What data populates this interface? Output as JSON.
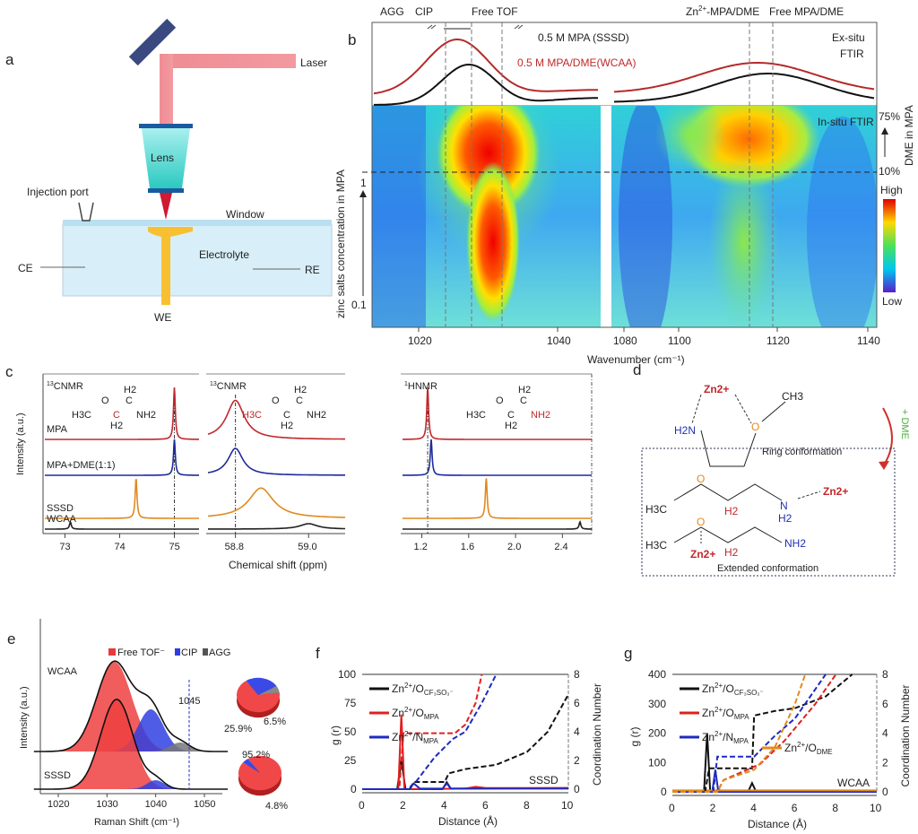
{
  "panels": {
    "a": "a",
    "b": "b",
    "c": "c",
    "d": "d",
    "e": "e",
    "f": "f",
    "g": "g"
  },
  "a": {
    "laser": "Laser",
    "lens": "Lens",
    "injection_port": "Injection port",
    "window": "Window",
    "electrolyte": "Electrolyte",
    "ce": "CE",
    "re": "RE",
    "we": "WE"
  },
  "b": {
    "top_labels": [
      "AGG",
      "CIP",
      "Free TOF",
      "Zn2+-MPA/DME",
      "Free MPA/DME"
    ],
    "zn_label": "Zn",
    "zn_sup": "2+",
    "zn_rest": "-MPA/DME",
    "sssd_label": "0.5 M MPA (SSSD)",
    "wcaa_label": "0.5 M MPA/DME(WCAA)",
    "exsitu": "Ex-situ",
    "ftir": "FTIR",
    "insitu": "In-situ FTIR",
    "x_ticks": [
      "1020",
      "1040",
      "1080",
      "1100",
      "1120",
      "1140"
    ],
    "xlabel": "Wavenumber (cm⁻¹)",
    "ylabel": "zinc salts concentration in MPA",
    "y_top": "1",
    "y_bottom": "0.1",
    "right_top": "75%",
    "right_mid": "10%",
    "right_label": "DME in MPA",
    "colorbar_high": "High",
    "colorbar_low": "Low",
    "colors": {
      "sssd": "#111111",
      "wcaa": "#b52a2a"
    }
  },
  "c": {
    "panel_titles": [
      "13CNMR",
      "13CNMR",
      "1HNMR"
    ],
    "title_sup": [
      "13",
      "13",
      "1"
    ],
    "title_rest": [
      "CNMR",
      "CNMR",
      "HNMR"
    ],
    "samples": [
      "MPA",
      "MPA+DME(1:1)",
      "SSSD",
      "WCAA"
    ],
    "sample_colors": [
      "#c0282d",
      "#1f2a9c",
      "#e08a1e",
      "#222222"
    ],
    "ylabel": "Intensity (a.u.)",
    "xlabel": "Chemical shift (ppm)",
    "ticks": [
      [
        "73",
        "74",
        "75"
      ],
      [
        "58.8",
        "59.0"
      ],
      [
        "1.2",
        "1.6",
        "2.0",
        "2.4"
      ]
    ],
    "peaks_ppm": [
      [
        75.0,
        75.0,
        74.3,
        73.1
      ],
      [
        58.8,
        58.8,
        58.87,
        59.0
      ],
      [
        1.25,
        1.28,
        1.75,
        2.55
      ]
    ],
    "molecule": {
      "h3c": "H3C",
      "o": "O",
      "c": "C",
      "h2": "H2",
      "nh2": "NH2"
    }
  },
  "d": {
    "zn": "Zn2+",
    "ch3": "CH3",
    "h2n": "H2N",
    "o": "O",
    "ring": "Ring conformation",
    "dme": "+ DME",
    "extended": "Extended conformation",
    "h3c": "H3C",
    "h2": "H2",
    "n": "N",
    "nh2": "NH2"
  },
  "e": {
    "legend": [
      "Free TOF⁻",
      "CIP",
      "AGG"
    ],
    "legend_colors": [
      "#e83a3a",
      "#2f3de0",
      "#555555"
    ],
    "samples": [
      "WCAA",
      "SSSD"
    ],
    "peak_label": "1045",
    "x_ticks": [
      "1020",
      "1030",
      "1040",
      "1050"
    ],
    "xlabel": "Raman Shift (cm⁻¹)",
    "ylabel": "Intensity (a.u.)",
    "pie_wcaa": {
      "free": 67.6,
      "cip": 25.9,
      "agg": 6.5,
      "labels": [
        "25.9%",
        "6.5%"
      ]
    },
    "pie_sssd": {
      "free": 95.2,
      "cip": 4.8,
      "labels": [
        "95.2%",
        "4.8%"
      ]
    }
  },
  "chart_data": [
    {
      "type": "line",
      "panel": "f",
      "xlabel": "Distance (Å)",
      "ylabel": "g (r)",
      "y2label": "Coordination Number",
      "xlim": [
        0,
        10
      ],
      "ylim": [
        0,
        100
      ],
      "y2lim": [
        0,
        8
      ],
      "x_ticks": [
        "0",
        "2",
        "4",
        "6",
        "8",
        "10"
      ],
      "y_ticks": [
        "0",
        "25",
        "50",
        "75",
        "100"
      ],
      "y2_ticks": [
        "0",
        "2",
        "4",
        "6",
        "8"
      ],
      "annotation": "SSSD",
      "legend": [
        "Zn2+/O CF3SO3-",
        "Zn2+/O MPA",
        "Zn2+/N MPA"
      ],
      "gr": [
        {
          "color": "#111111",
          "points": [
            [
              0,
              0
            ],
            [
              1.7,
              0
            ],
            [
              1.9,
              25
            ],
            [
              2.1,
              0
            ],
            [
              3.9,
              0
            ],
            [
              4.1,
              6
            ],
            [
              4.3,
              0.5
            ],
            [
              10,
              1
            ]
          ]
        },
        {
          "color": "#e02020",
          "points": [
            [
              0,
              0
            ],
            [
              1.75,
              0
            ],
            [
              1.9,
              65
            ],
            [
              2.05,
              0
            ],
            [
              5,
              0.5
            ],
            [
              5.5,
              2
            ],
            [
              6,
              1
            ],
            [
              10,
              1
            ]
          ]
        },
        {
          "color": "#1f2ac0",
          "points": [
            [
              0,
              0
            ],
            [
              2.3,
              0
            ],
            [
              2.5,
              5
            ],
            [
              2.8,
              0.5
            ],
            [
              3.9,
              0.5
            ],
            [
              4.1,
              5
            ],
            [
              4.3,
              0.5
            ],
            [
              10,
              0.5
            ]
          ]
        }
      ],
      "cn": [
        {
          "color": "#111111",
          "points": [
            [
              0,
              0
            ],
            [
              2.3,
              0
            ],
            [
              2.5,
              0.5
            ],
            [
              4,
              0.5
            ],
            [
              4.2,
              1.1
            ],
            [
              5,
              1.4
            ],
            [
              6.5,
              1.7
            ],
            [
              8,
              2.6
            ],
            [
              9,
              4
            ],
            [
              10,
              6.6
            ]
          ]
        },
        {
          "color": "#e02020",
          "points": [
            [
              0,
              0
            ],
            [
              1.8,
              0
            ],
            [
              2,
              3.9
            ],
            [
              4.5,
              3.9
            ],
            [
              5,
              4.5
            ],
            [
              5.5,
              6
            ],
            [
              5.8,
              8
            ]
          ]
        },
        {
          "color": "#1f2ac0",
          "points": [
            [
              0,
              0
            ],
            [
              2.2,
              0
            ],
            [
              2.6,
              0.5
            ],
            [
              3.5,
              2.2
            ],
            [
              4.4,
              3.5
            ],
            [
              5,
              4
            ],
            [
              5.8,
              6
            ],
            [
              6.5,
              8
            ]
          ]
        }
      ]
    },
    {
      "type": "line",
      "panel": "g",
      "xlabel": "Distance (Å)",
      "ylabel": "g (r)",
      "y2label": "Coordination Number",
      "xlim": [
        0,
        10
      ],
      "ylim": [
        0,
        400
      ],
      "y2lim": [
        0,
        8
      ],
      "x_ticks": [
        "0",
        "2",
        "4",
        "6",
        "8",
        "10"
      ],
      "y_ticks": [
        "0",
        "100",
        "200",
        "300",
        "400"
      ],
      "y2_ticks": [
        "0",
        "2",
        "4",
        "6",
        "8"
      ],
      "annotation": "WCAA",
      "legend": [
        "Zn2+/O CF3SO3-",
        "Zn2+/O MPA",
        "Zn2+/N MPA",
        "Zn2+/O DME"
      ],
      "gr": [
        {
          "color": "#111111",
          "points": [
            [
              0,
              0
            ],
            [
              1.55,
              0
            ],
            [
              1.7,
              200
            ],
            [
              1.85,
              0
            ],
            [
              3.7,
              0
            ],
            [
              3.9,
              30
            ],
            [
              4.1,
              0
            ],
            [
              10,
              0
            ]
          ]
        },
        {
          "color": "#e02020",
          "points": [
            [
              0,
              0
            ],
            [
              2.1,
              0
            ],
            [
              2.25,
              10
            ],
            [
              2.4,
              0
            ],
            [
              10,
              2
            ]
          ]
        },
        {
          "color": "#1f2ac0",
          "points": [
            [
              0,
              0
            ],
            [
              1.95,
              0
            ],
            [
              2.1,
              75
            ],
            [
              2.25,
              0
            ],
            [
              10,
              0
            ]
          ]
        },
        {
          "color": "#e08a1e",
          "points": [
            [
              0,
              5
            ],
            [
              10,
              5
            ]
          ]
        }
      ],
      "cn": [
        {
          "color": "#111111",
          "points": [
            [
              0,
              0
            ],
            [
              1.6,
              0
            ],
            [
              1.8,
              1.6
            ],
            [
              3.9,
              1.6
            ],
            [
              4,
              5.2
            ],
            [
              5,
              5.5
            ],
            [
              6,
              5.7
            ],
            [
              7.5,
              6.5
            ],
            [
              8.8,
              8
            ]
          ]
        },
        {
          "color": "#1f2ac0",
          "points": [
            [
              0,
              0
            ],
            [
              2,
              0
            ],
            [
              2.2,
              2.4
            ],
            [
              4,
              2.4
            ],
            [
              5,
              3.8
            ],
            [
              6,
              5
            ],
            [
              7.5,
              8
            ]
          ]
        },
        {
          "color": "#e02020",
          "points": [
            [
              0,
              0
            ],
            [
              2.2,
              0
            ],
            [
              2.5,
              0.8
            ],
            [
              4.3,
              1.9
            ],
            [
              5.5,
              3.5
            ],
            [
              7,
              6
            ],
            [
              8,
              8
            ]
          ]
        },
        {
          "color": "#e08a1e",
          "points": [
            [
              0,
              0
            ],
            [
              2.2,
              0
            ],
            [
              2.5,
              0.8
            ],
            [
              4,
              1.5
            ],
            [
              5,
              3
            ],
            [
              6,
              6
            ],
            [
              6.5,
              8
            ]
          ]
        }
      ]
    }
  ]
}
